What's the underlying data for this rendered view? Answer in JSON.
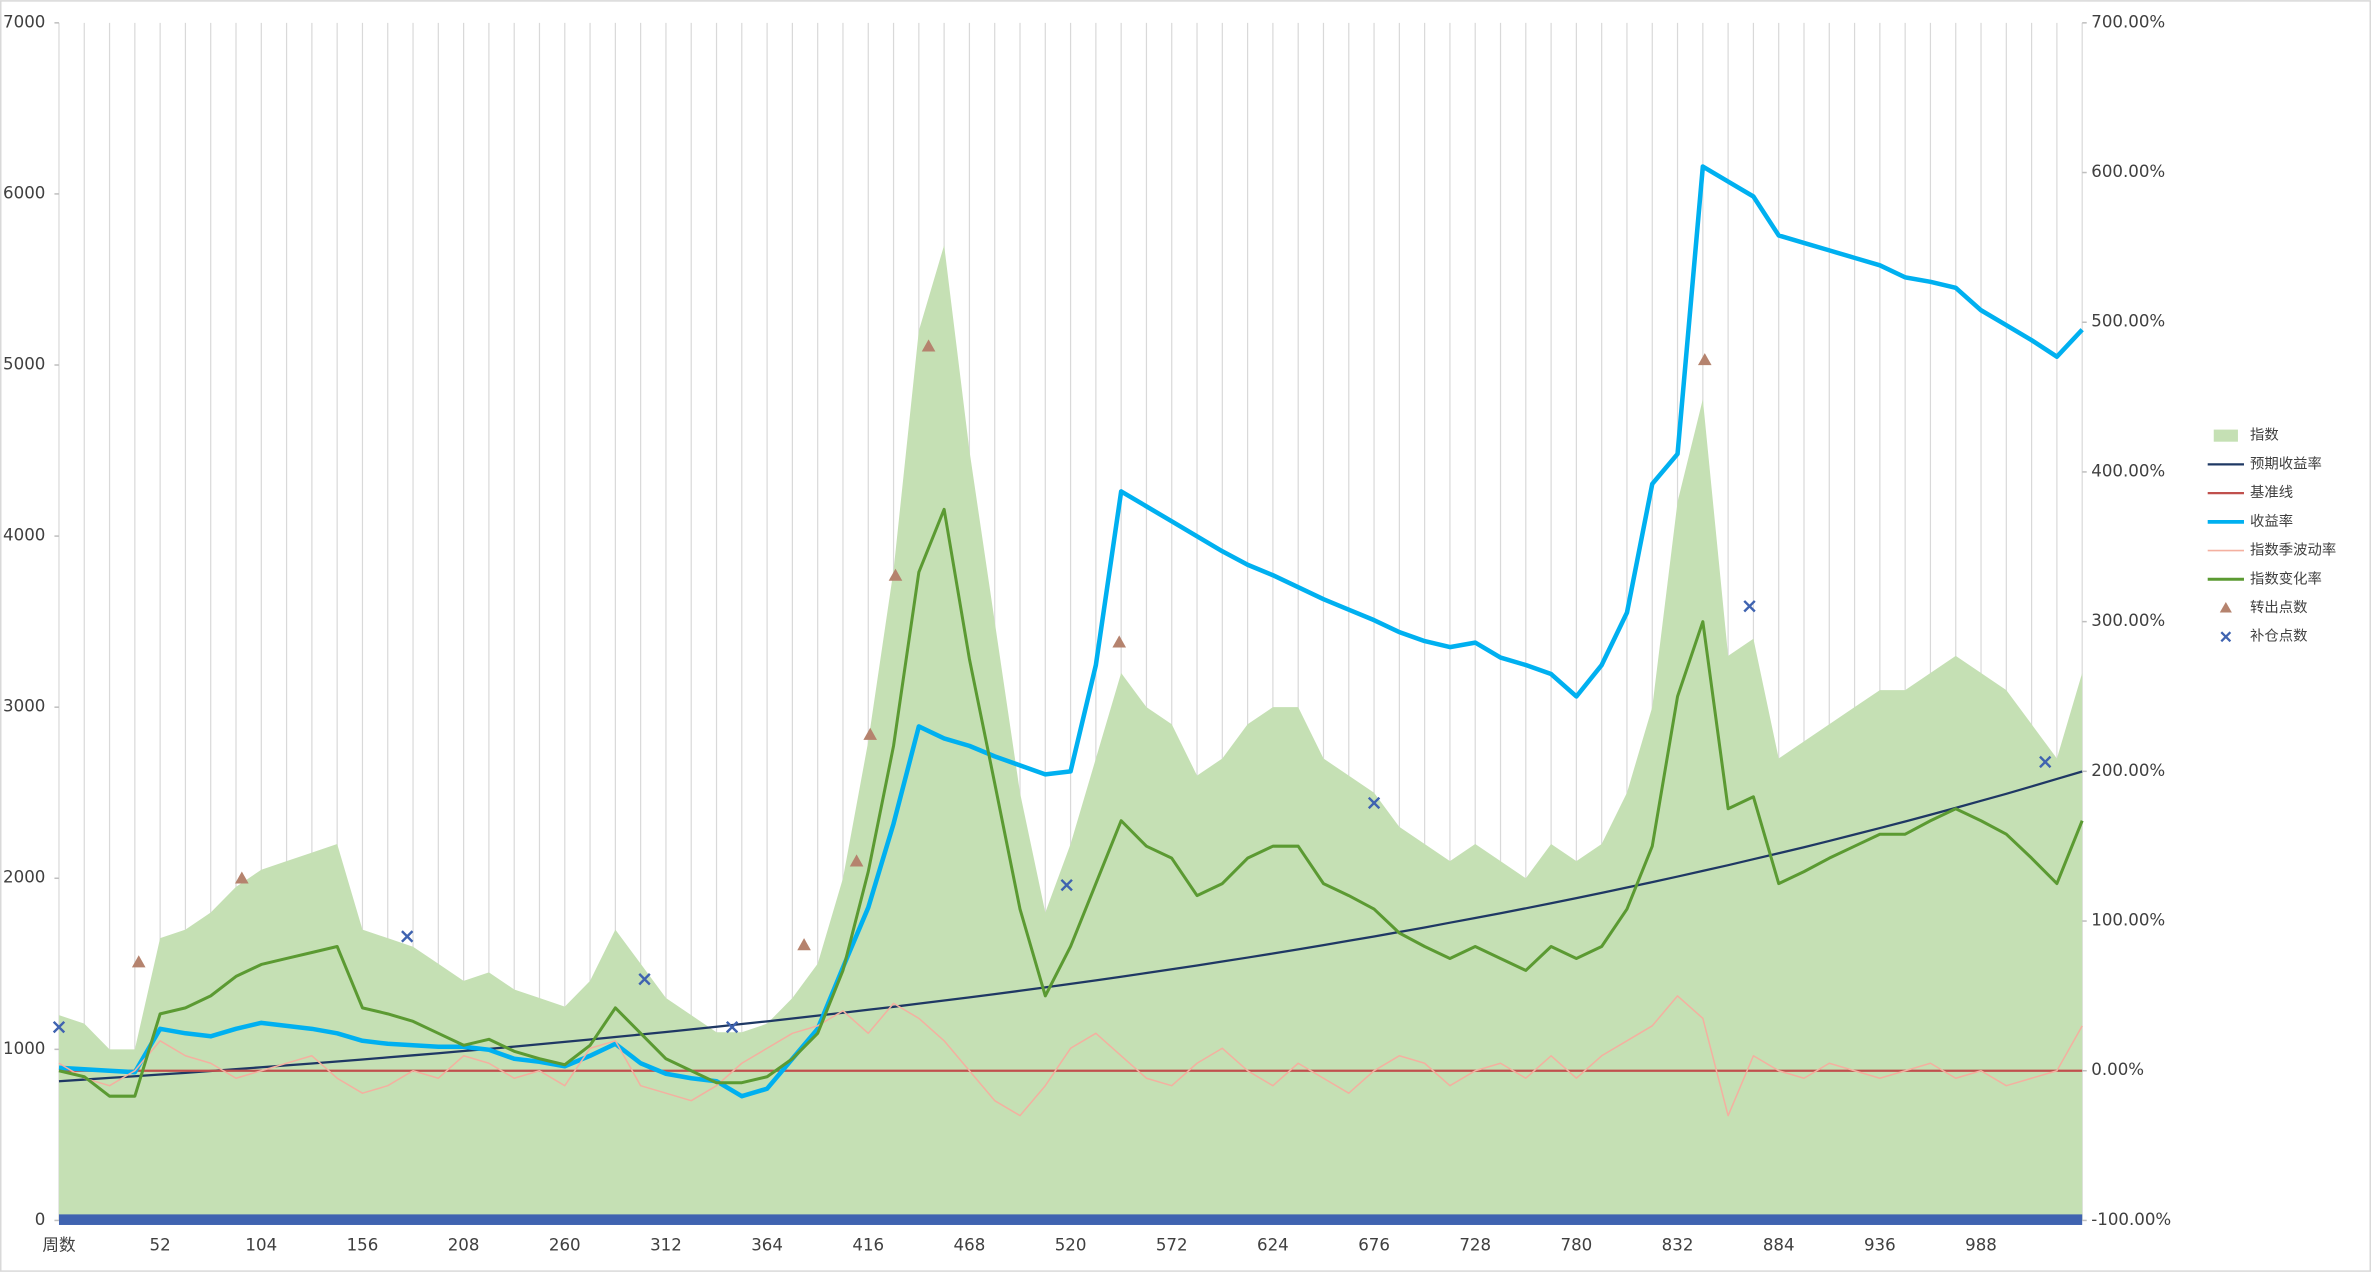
{
  "chart_data": {
    "type": "combo",
    "grid": true,
    "legend": "right",
    "x": [
      0,
      13,
      26,
      39,
      52,
      65,
      78,
      91,
      104,
      117,
      130,
      143,
      156,
      169,
      182,
      195,
      208,
      221,
      234,
      247,
      260,
      273,
      286,
      299,
      312,
      325,
      338,
      351,
      364,
      377,
      390,
      403,
      416,
      429,
      442,
      455,
      468,
      481,
      494,
      507,
      520,
      533,
      546,
      559,
      572,
      585,
      598,
      611,
      624,
      637,
      650,
      663,
      676,
      689,
      702,
      715,
      728,
      741,
      754,
      767,
      780,
      793,
      806,
      819,
      832,
      845,
      858,
      871,
      884,
      897,
      910,
      923,
      936,
      949,
      962,
      975,
      988,
      1001,
      1014,
      1027,
      1040
    ],
    "xlim": [
      0,
      1040
    ],
    "xticks": [
      {
        "value": 0,
        "label": "周数"
      },
      52,
      104,
      156,
      208,
      260,
      312,
      364,
      416,
      468,
      520,
      572,
      624,
      676,
      728,
      780,
      832,
      884,
      936,
      988
    ],
    "ylim": [
      0,
      7000
    ],
    "yticks": [
      0,
      1000,
      2000,
      3000,
      4000,
      5000,
      6000,
      7000
    ],
    "y2lim": [
      -100,
      700
    ],
    "y2ticks": [
      {
        "value": -100,
        "label": "-100.00%"
      },
      {
        "value": 0,
        "label": "0.00%"
      },
      {
        "value": 100,
        "label": "100.00%"
      },
      {
        "value": 200,
        "label": "200.00%"
      },
      {
        "value": 300,
        "label": "300.00%"
      },
      {
        "value": 400,
        "label": "400.00%"
      },
      {
        "value": 500,
        "label": "500.00%"
      },
      {
        "value": 600,
        "label": "600.00%"
      },
      {
        "value": 700,
        "label": "700.00%"
      }
    ],
    "series": [
      {
        "name": "指数",
        "type": "area",
        "color": "#c5e0b4",
        "values": [
          1200,
          1150,
          1000,
          1000,
          1650,
          1700,
          1800,
          1950,
          2050,
          2100,
          2150,
          2200,
          1700,
          1650,
          1600,
          1500,
          1400,
          1450,
          1350,
          1300,
          1250,
          1400,
          1700,
          1500,
          1300,
          1200,
          1100,
          1100,
          1150,
          1300,
          1500,
          2000,
          2800,
          3800,
          5200,
          5700,
          4500,
          3500,
          2500,
          1800,
          2200,
          2700,
          3200,
          3000,
          2900,
          2600,
          2700,
          2900,
          3000,
          3000,
          2700,
          2600,
          2500,
          2300,
          2200,
          2100,
          2200,
          2100,
          2000,
          2200,
          2100,
          2200,
          2500,
          3000,
          4200,
          4800,
          3300,
          3400,
          2700,
          2800,
          2900,
          3000,
          3100,
          3100,
          3200,
          3300,
          3200,
          3100,
          2900,
          2700,
          3200
        ]
      },
      {
        "name": "预期收益率",
        "type": "line",
        "axis": "y2",
        "color": "#1f3864",
        "width": 1.5,
        "values": [
          -7,
          -5.9,
          -4.8,
          -3.7,
          -2.5,
          -1.4,
          -0.2,
          1.1,
          2.3,
          3.6,
          4.8,
          6.2,
          7.5,
          8.9,
          10.3,
          11.7,
          13.2,
          14.6,
          16.1,
          17.7,
          19.3,
          20.9,
          22.5,
          24.2,
          25.9,
          27.6,
          29.4,
          31.2,
          33,
          34.9,
          36.8,
          38.7,
          40.7,
          42.7,
          44.8,
          46.9,
          49,
          51.2,
          53.4,
          55.7,
          58,
          60.4,
          62.8,
          65.3,
          67.8,
          70.3,
          73,
          75.6,
          78.3,
          81.1,
          83.9,
          86.8,
          89.7,
          92.7,
          95.7,
          98.9,
          102,
          105.2,
          108.5,
          111.9,
          115.3,
          118.8,
          122.4,
          126,
          129.7,
          133.5,
          137.3,
          141.3,
          145.3,
          149.3,
          153.5,
          157.8,
          162.1,
          166.5,
          171,
          175.6,
          180.3,
          185,
          189.9,
          194.9,
          199.9
        ]
      },
      {
        "name": "基准线",
        "type": "line",
        "axis": "y2",
        "color": "#c0504d",
        "width": 1.5,
        "x": [
          0,
          1040
        ],
        "values": [
          0,
          0
        ]
      },
      {
        "name": "收益率",
        "type": "line",
        "axis": "y2",
        "color": "#00b0f0",
        "width": 3,
        "values": [
          2,
          1,
          0,
          -1,
          28,
          25,
          23,
          28,
          32,
          30,
          28,
          25,
          20,
          18,
          17,
          16,
          16,
          14,
          8,
          6,
          3,
          10,
          18,
          5,
          -2,
          -5,
          -7,
          -17,
          -12,
          8,
          28,
          69,
          109,
          165,
          230,
          222,
          217,
          210,
          204,
          198,
          200,
          271,
          387,
          377,
          367,
          357,
          347,
          338,
          331,
          323,
          315,
          308,
          301,
          293,
          287,
          283,
          286,
          276,
          271,
          265,
          250,
          271,
          306,
          392,
          412,
          604,
          594,
          584,
          558,
          553,
          548,
          543,
          538,
          530,
          527,
          523,
          508,
          498,
          488,
          477,
          495
        ]
      },
      {
        "name": "指数季波动率",
        "type": "line",
        "axis": "y2",
        "color": "#f4b0a0",
        "width": 1,
        "values": [
          5,
          -5,
          -10,
          0,
          20,
          10,
          5,
          -5,
          0,
          5,
          10,
          -5,
          -15,
          -10,
          0,
          -5,
          10,
          5,
          -5,
          0,
          -10,
          15,
          20,
          -10,
          -15,
          -20,
          -10,
          5,
          15,
          25,
          30,
          40,
          25,
          45,
          35,
          20,
          0,
          -20,
          -30,
          -10,
          15,
          25,
          10,
          -5,
          -10,
          5,
          15,
          0,
          -10,
          5,
          -5,
          -15,
          0,
          10,
          5,
          -10,
          0,
          5,
          -5,
          10,
          -5,
          10,
          20,
          30,
          50,
          35,
          -30,
          10,
          0,
          -5,
          5,
          0,
          -5,
          0,
          5,
          -5,
          0,
          -10,
          -5,
          0,
          30
        ]
      },
      {
        "name": "指数变化率",
        "type": "line",
        "axis": "y2",
        "color": "#5b9a32",
        "width": 2,
        "values": [
          0,
          -4,
          -17,
          -17,
          38,
          42,
          50,
          63,
          71,
          75,
          79,
          83,
          42,
          38,
          33,
          25,
          17,
          21,
          13,
          8,
          4,
          17,
          42,
          25,
          8,
          0,
          -8,
          -8,
          -4,
          8,
          25,
          67,
          133,
          217,
          333,
          375,
          275,
          192,
          108,
          50,
          83,
          125,
          167,
          150,
          142,
          117,
          125,
          142,
          150,
          150,
          125,
          117,
          108,
          92,
          83,
          75,
          83,
          75,
          67,
          83,
          75,
          83,
          108,
          150,
          250,
          300,
          175,
          183,
          125,
          133,
          142,
          150,
          158,
          158,
          167,
          175,
          167,
          158,
          142,
          125,
          167
        ]
      },
      {
        "name": "转出点数",
        "type": "scatter",
        "marker": "triangle",
        "color": "#b5836e",
        "x": [
          41,
          94,
          383,
          410,
          417,
          430,
          447,
          545,
          846
        ],
        "values": [
          1510,
          2000,
          1610,
          2100,
          2840,
          3770,
          5110,
          3380,
          5030
        ]
      },
      {
        "name": "补仓点数",
        "type": "scatter",
        "marker": "x",
        "color": "#3f63b0",
        "x": [
          0,
          179,
          301,
          346,
          518,
          676,
          869,
          1021
        ],
        "values": [
          1130,
          1660,
          1410,
          1130,
          1960,
          2440,
          3590,
          2680
        ]
      }
    ]
  }
}
